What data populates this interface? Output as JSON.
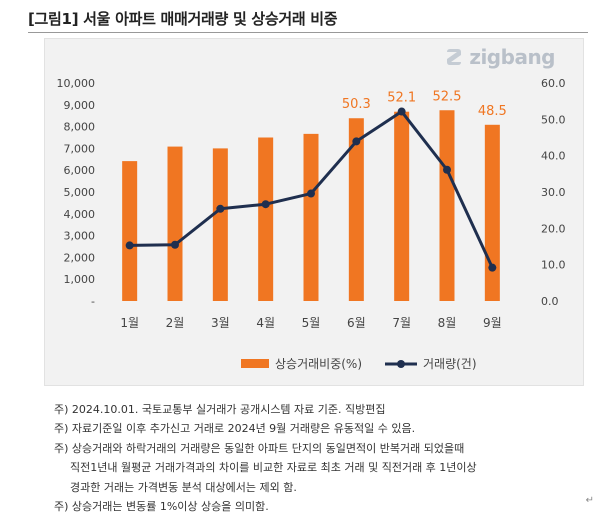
{
  "title": "[그림1] 서울 아파트 매매거래량 및 상승거래 비중",
  "logo_text": "zigbang",
  "colors": {
    "bar": "#f07622",
    "line": "#1f2f4f",
    "label": "#f07622",
    "grid": "#d9d9d9"
  },
  "chart_data": {
    "type": "bar-line-combo",
    "categories": [
      "1월",
      "2월",
      "3월",
      "4월",
      "5월",
      "6월",
      "7월",
      "8월",
      "9월"
    ],
    "series": [
      {
        "name": "상승거래비중(%)",
        "type": "bar",
        "axis": "right",
        "values": [
          38.5,
          42.5,
          42.0,
          45.0,
          46.0,
          50.3,
          52.1,
          52.5,
          48.5
        ]
      },
      {
        "name": "거래량(건)",
        "type": "line",
        "axis": "left",
        "values": [
          2550,
          2580,
          4230,
          4440,
          4930,
          7320,
          8690,
          6020,
          1530
        ]
      }
    ],
    "data_labels": [
      {
        "category": "6월",
        "text": "50.3"
      },
      {
        "category": "7월",
        "text": "52.1"
      },
      {
        "category": "8월",
        "text": "52.5"
      },
      {
        "category": "9월",
        "text": "48.5"
      }
    ],
    "left_axis": {
      "min": 0,
      "max": 10000,
      "ticks": [
        "-",
        "1,000",
        "2,000",
        "3,000",
        "4,000",
        "5,000",
        "6,000",
        "7,000",
        "8,000",
        "9,000",
        "10,000"
      ]
    },
    "right_axis": {
      "min": 0,
      "max": 60,
      "ticks": [
        "0.0",
        "10.0",
        "20.0",
        "30.0",
        "40.0",
        "50.0",
        "60.0"
      ]
    },
    "legend": {
      "position": "bottom",
      "bar_label": "상승거래비중(%)",
      "line_label": "거래량(건)"
    }
  },
  "notes": [
    "주) 2024.10.01. 국토교통부 실거래가 공개시스템 자료 기준. 직방편집",
    "주) 자료기준일 이후 추가신고 거래로 2024년 9월 거래량은 유동적일 수 있음.",
    "주) 상승거래와 하락거래의 거래량은 동일한 아파트 단지의 동일면적이 반복거래 되었을때",
    "직전1년내 월평균 거래가격과의 차이를 비교한 자료로 최초 거래 및 직전거래 후 1년이상",
    "경과한 거래는 가격변동 분석 대상에서는 제외 함.",
    "주) 상승거래는 변동률 1%이상 상승을 의미함."
  ],
  "end_mark": "↵"
}
